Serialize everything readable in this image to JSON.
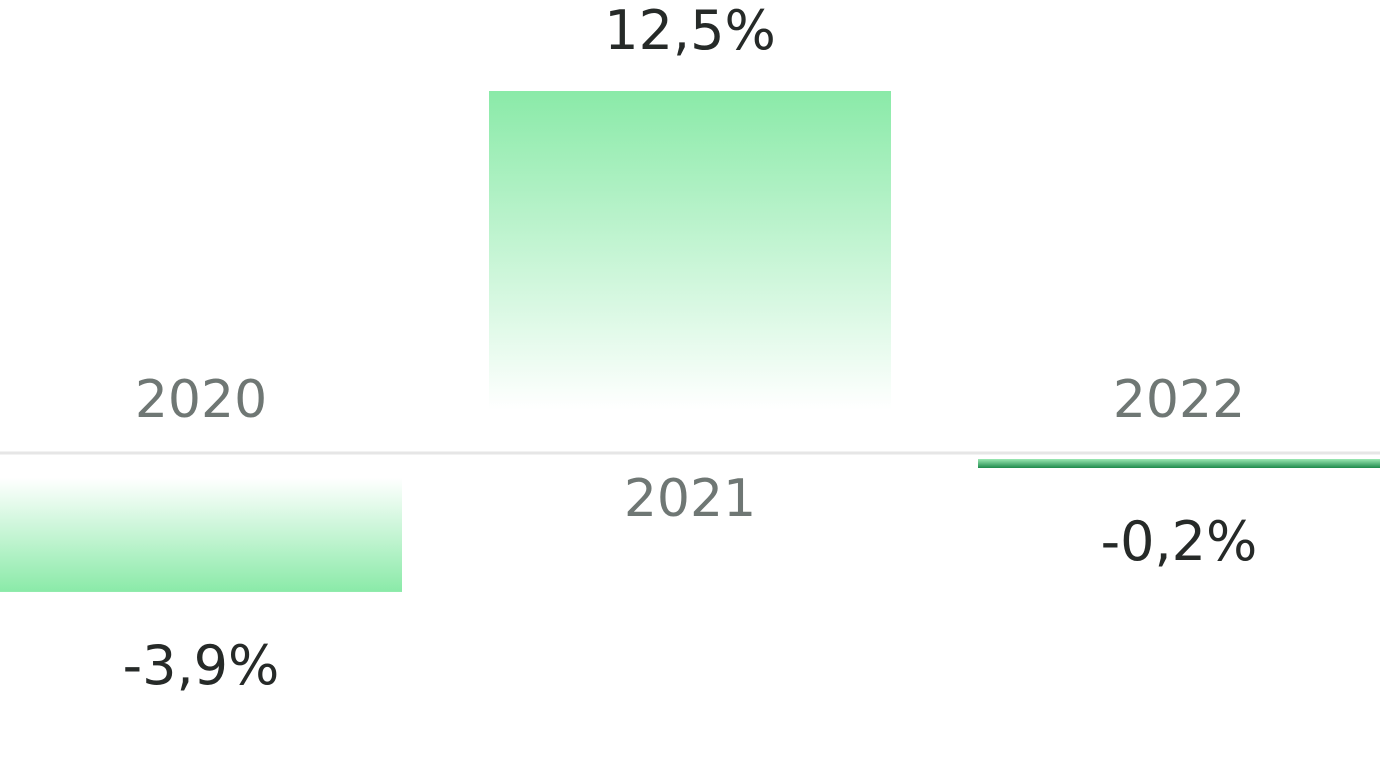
{
  "chart_data": {
    "type": "bar",
    "categories": [
      "2020",
      "2021",
      "2022"
    ],
    "values": [
      -3.9,
      12.5,
      -0.2
    ],
    "value_labels": [
      "-3,9%",
      "12,5%",
      "-0,2%"
    ],
    "title": "",
    "xlabel": "",
    "ylabel": "",
    "ylim": [
      -4.5,
      13
    ],
    "grid": false,
    "legend": "none",
    "colors": {
      "bar_strong": "#8aeaa8",
      "bar_fade": "#ffffff",
      "small_bar": "#1e8a4c",
      "baseline": "#e6e6e6",
      "category_text": "#6f7774",
      "value_text": "#262a28"
    }
  }
}
